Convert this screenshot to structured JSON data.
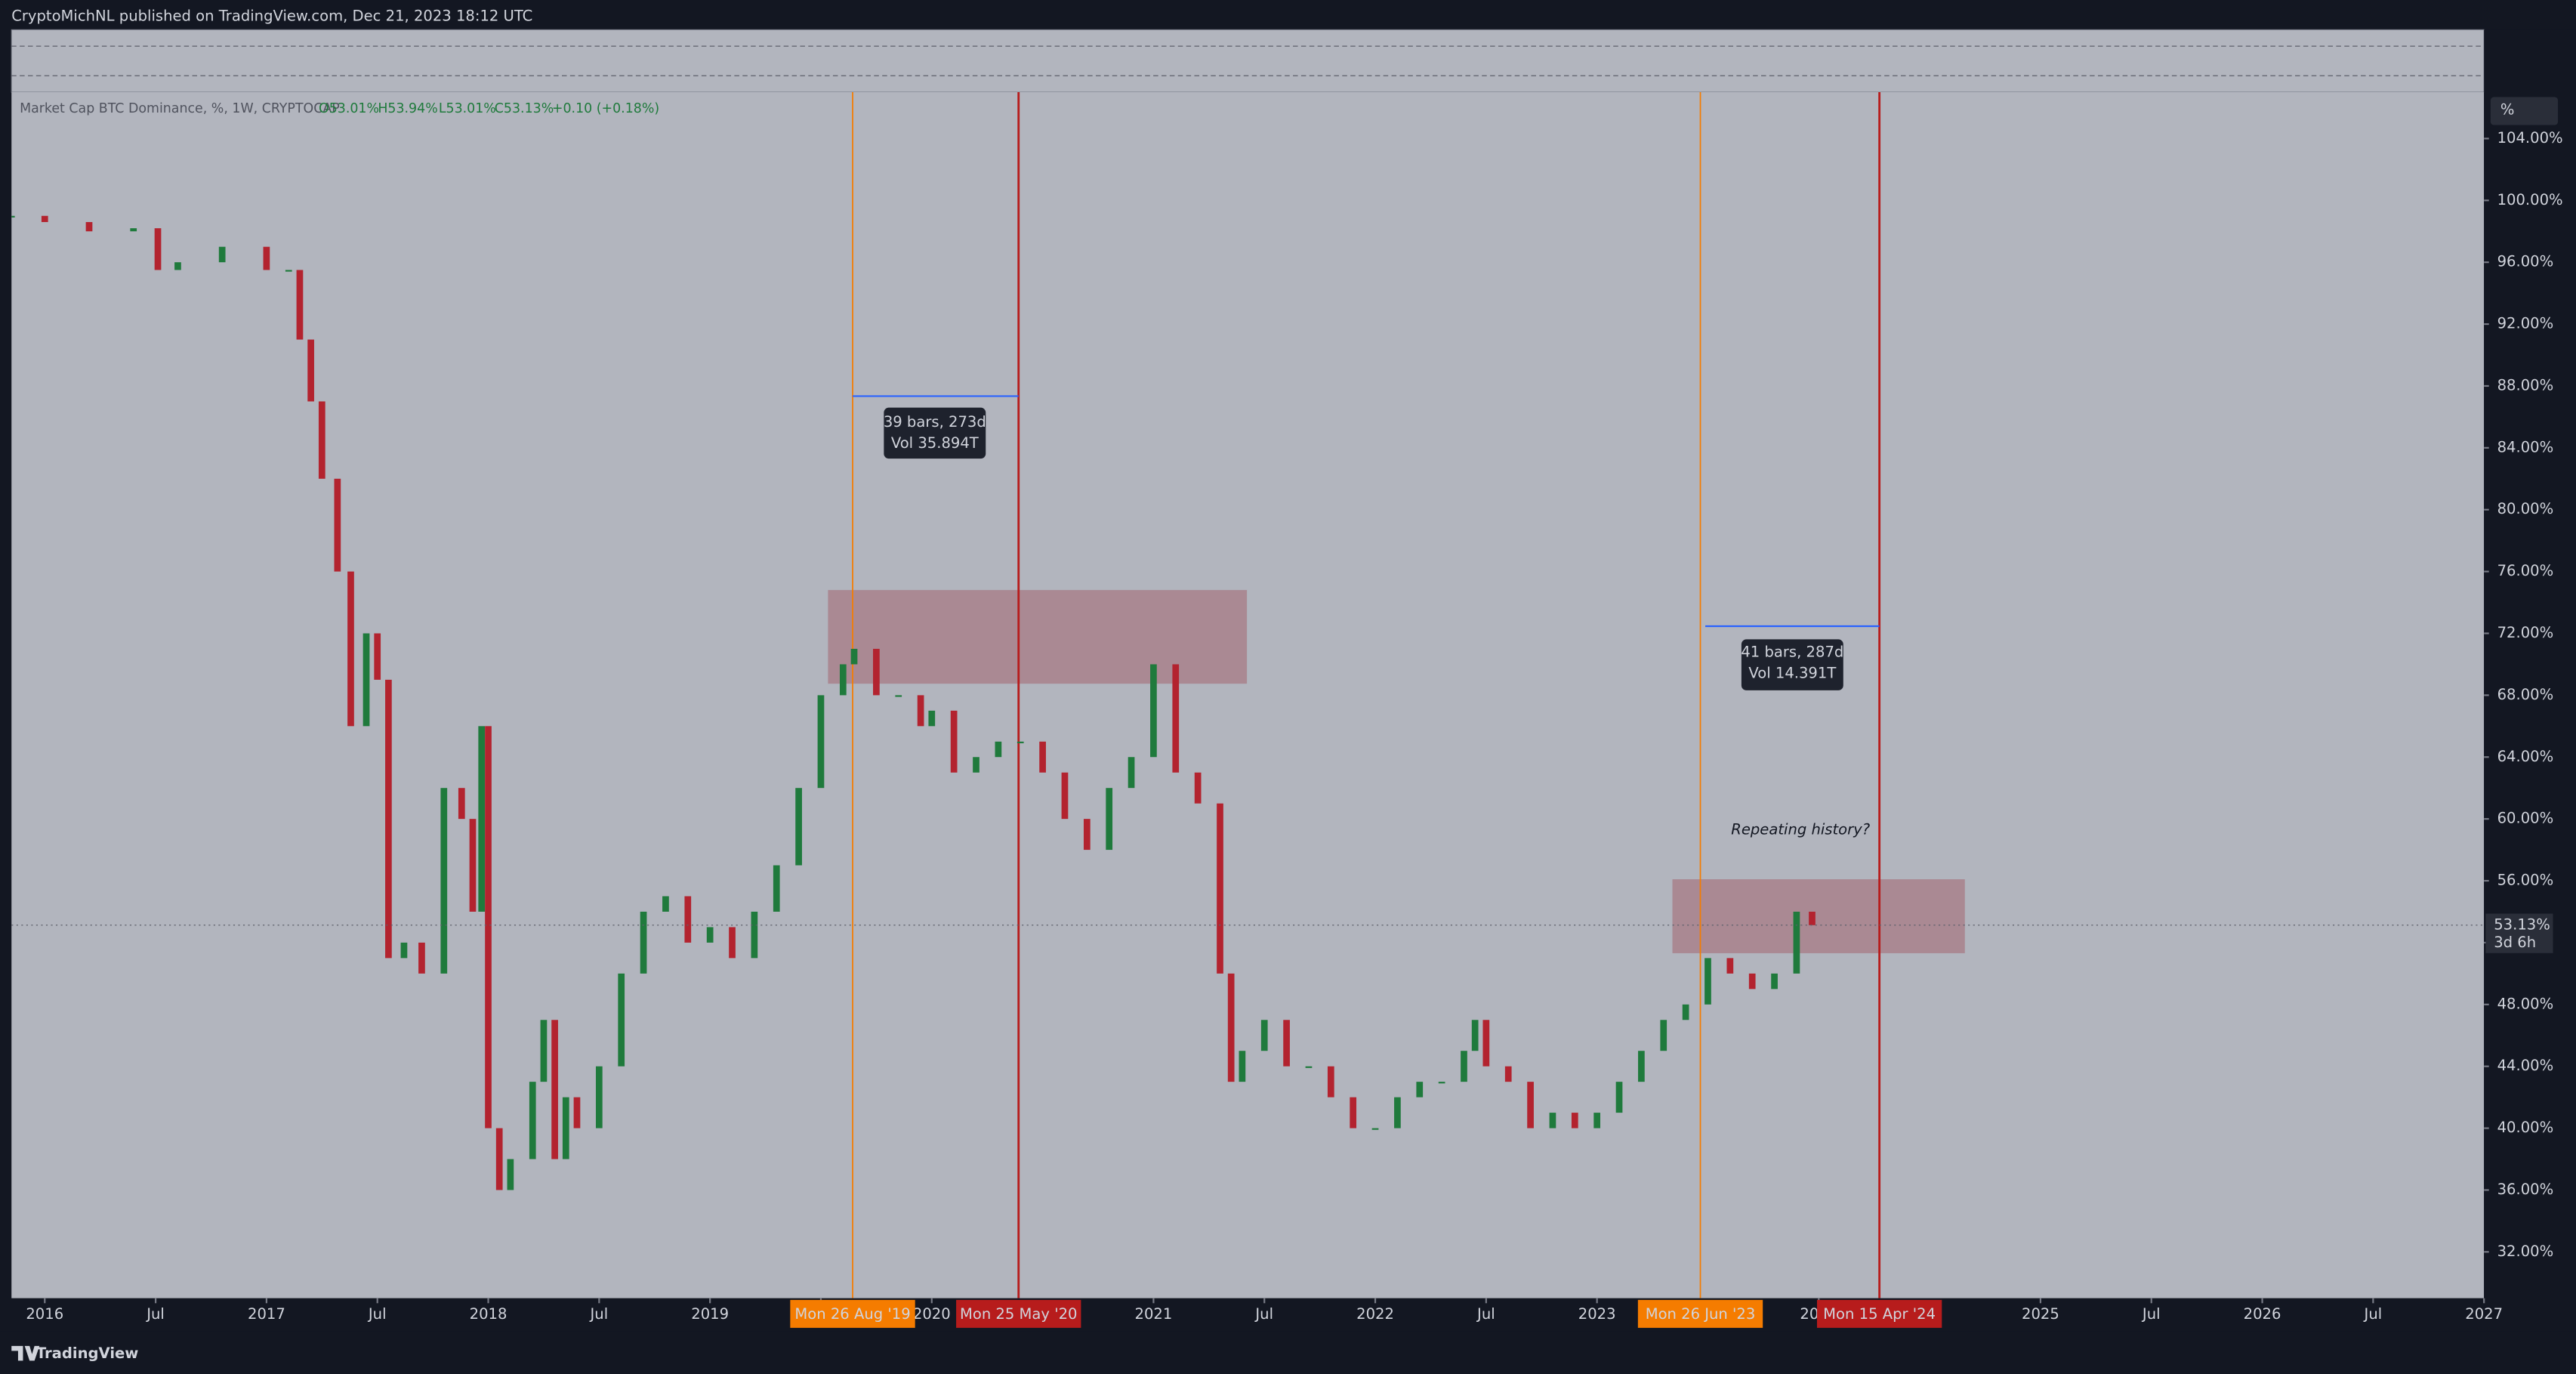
{
  "header": {
    "publisher": "CryptoMichNL published on TradingView.com, Dec 21, 2023 18:12 UTC"
  },
  "legend": {
    "symbol": "Market Cap BTC Dominance, %, 1W, CRYPTOCAP",
    "open": "O53.01%",
    "high": "H53.94%",
    "low": "L53.01%",
    "close": "C53.13%",
    "change": "+0.10 (+0.18%)"
  },
  "scale_button": "%",
  "chart_data": {
    "type": "candlestick",
    "up_color": "#1f7a3c",
    "down_color": "#b3232f",
    "x": [
      2015.85,
      2016.0,
      2016.2,
      2016.4,
      2016.51,
      2016.6,
      2016.8,
      2017.0,
      2017.1,
      2017.15,
      2017.2,
      2017.25,
      2017.32,
      2017.38,
      2017.45,
      2017.5,
      2017.55,
      2017.62,
      2017.7,
      2017.8,
      2017.88,
      2017.93,
      2017.97,
      2018.0,
      2018.05,
      2018.1,
      2018.2,
      2018.25,
      2018.3,
      2018.35,
      2018.4,
      2018.5,
      2018.6,
      2018.7,
      2018.8,
      2018.9,
      2019.0,
      2019.1,
      2019.2,
      2019.3,
      2019.4,
      2019.5,
      2019.6,
      2019.65,
      2019.75,
      2019.85,
      2019.95,
      2020.0,
      2020.1,
      2020.2,
      2020.3,
      2020.4,
      2020.5,
      2020.6,
      2020.7,
      2020.8,
      2020.9,
      2021.0,
      2021.1,
      2021.2,
      2021.3,
      2021.35,
      2021.4,
      2021.5,
      2021.6,
      2021.7,
      2021.8,
      2021.9,
      2022.0,
      2022.1,
      2022.2,
      2022.3,
      2022.4,
      2022.45,
      2022.5,
      2022.6,
      2022.7,
      2022.8,
      2022.9,
      2023.0,
      2023.1,
      2023.2,
      2023.3,
      2023.4,
      2023.5,
      2023.6,
      2023.7,
      2023.8,
      2023.9,
      2023.97
    ],
    "values": [
      99.0,
      98.6,
      98.0,
      98.2,
      95.5,
      96,
      97,
      95.5,
      95.5,
      91,
      87,
      82,
      76,
      66,
      72,
      69,
      51,
      52,
      50,
      62,
      60,
      54,
      66,
      40,
      36,
      38,
      43,
      47,
      38,
      42,
      40,
      44,
      50,
      54,
      55,
      52,
      53,
      51,
      54,
      57,
      62,
      68,
      70,
      71,
      68,
      68,
      66,
      67,
      63,
      64,
      65,
      65,
      63,
      60,
      58,
      62,
      64,
      70,
      63,
      61,
      50,
      43,
      45,
      47,
      44,
      44,
      42,
      40,
      40,
      42,
      43,
      43,
      45,
      47,
      44,
      43,
      40,
      41,
      40,
      41,
      43,
      45,
      47,
      48,
      51,
      50,
      49,
      50,
      54,
      53.13
    ],
    "xlim": [
      2015.85,
      2027.0
    ],
    "xticks": [
      2016,
      {
        "value": 2016.5,
        "label": "Jul"
      },
      2017,
      {
        "value": 2017.5,
        "label": "Jul"
      },
      2018,
      {
        "value": 2018.5,
        "label": "Jul"
      },
      2019,
      {
        "value": 2019.5,
        "label": "Jul"
      },
      2020,
      2021,
      {
        "value": 2021.5,
        "label": "Jul"
      },
      2022,
      {
        "value": 2022.5,
        "label": "Jul"
      },
      2023,
      2024,
      2025,
      {
        "value": 2025.5,
        "label": "Jul"
      },
      2026,
      {
        "value": 2026.5,
        "label": "Jul"
      },
      2027
    ],
    "ylim": [
      29,
      107
    ],
    "yticks": [
      {
        "value": 104,
        "label": "104.00%"
      },
      {
        "value": 100,
        "label": "100.00%"
      },
      {
        "value": 96,
        "label": "96.00%"
      },
      {
        "value": 92,
        "label": "92.00%"
      },
      {
        "value": 88,
        "label": "88.00%"
      },
      {
        "value": 84,
        "label": "84.00%"
      },
      {
        "value": 80,
        "label": "80.00%"
      },
      {
        "value": 76,
        "label": "76.00%"
      },
      {
        "value": 72,
        "label": "72.00%"
      },
      {
        "value": 68,
        "label": "68.00%"
      },
      {
        "value": 64,
        "label": "64.00%"
      },
      {
        "value": 60,
        "label": "60.00%"
      },
      {
        "value": 56,
        "label": "56.00%"
      },
      {
        "value": 52,
        "label": "52.00%"
      },
      {
        "value": 48,
        "label": "48.00%"
      },
      {
        "value": 44,
        "label": "44.00%"
      },
      {
        "value": 40,
        "label": "40.00%"
      },
      {
        "value": 36,
        "label": "36.00%"
      },
      {
        "value": 32,
        "label": "32.00%"
      }
    ],
    "price_label": {
      "value": 53.13,
      "label": "53.13%"
    },
    "countdown": "3d 6h"
  },
  "annotations": {
    "date_1": "Mon 26 Aug '19",
    "date_2": "Mon 25 May '20",
    "date_3": "Mon 26 Jun '23",
    "date_4": "Mon 15 Apr '24",
    "measure_1": [
      "39 bars, 273d",
      "Vol 35.894T"
    ],
    "measure_2": [
      "41 bars, 287d",
      "Vol 14.391T"
    ],
    "note": "Repeating history?"
  },
  "footer": {
    "brand": "TradingView"
  }
}
